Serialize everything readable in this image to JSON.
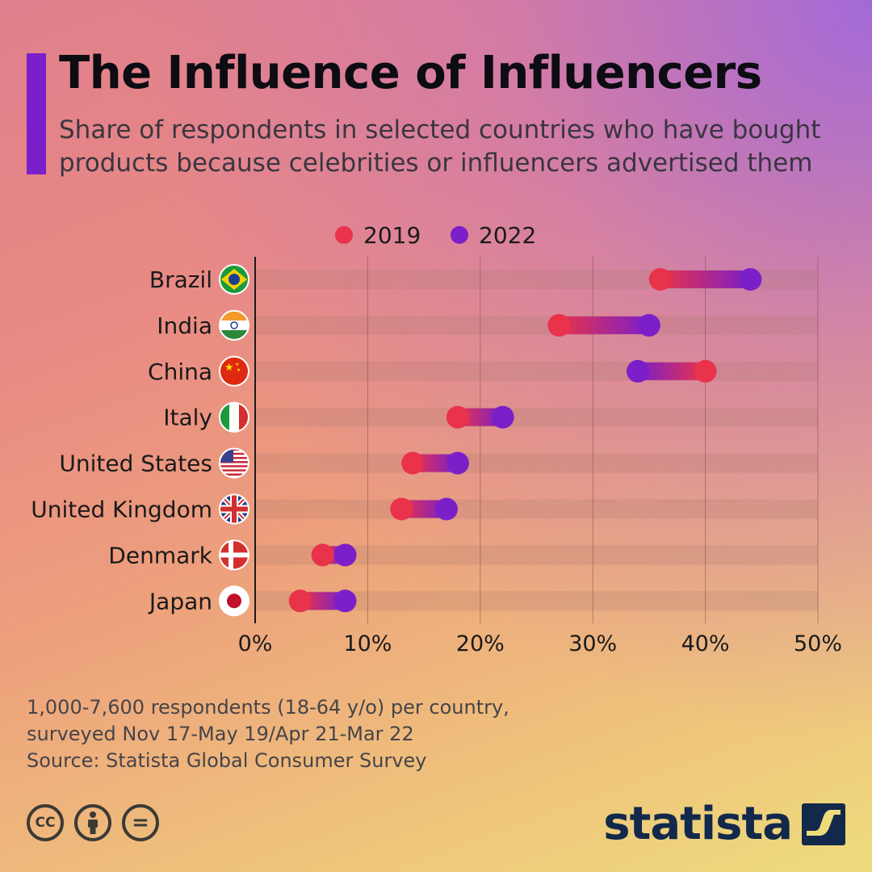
{
  "header": {
    "title": "The Influence of Influencers",
    "subtitle": "Share of respondents in selected countries who have bought products because celebrities or influencers advertised them"
  },
  "chart_data": {
    "type": "dumbbell",
    "xlim": [
      0,
      50
    ],
    "x_ticks": [
      0,
      10,
      20,
      30,
      40,
      50
    ],
    "x_tick_labels": [
      "0%",
      "10%",
      "20%",
      "30%",
      "40%",
      "50%"
    ],
    "categories": [
      "Brazil",
      "India",
      "China",
      "Italy",
      "United States",
      "United Kingdom",
      "Denmark",
      "Japan"
    ],
    "series": [
      {
        "name": "2019",
        "color": "#e8334a",
        "values": [
          36,
          27,
          40,
          18,
          14,
          13,
          6,
          4
        ]
      },
      {
        "name": "2022",
        "color": "#7b1fc9",
        "values": [
          44,
          35,
          34,
          22,
          18,
          17,
          8,
          8
        ]
      }
    ],
    "legend": [
      "2019",
      "2022"
    ],
    "legend_position": "top-center",
    "grid": true
  },
  "flags": [
    "brazil-flag",
    "india-flag",
    "china-flag",
    "italy-flag",
    "united-states-flag",
    "united-kingdom-flag",
    "denmark-flag",
    "japan-flag"
  ],
  "footer": {
    "note": "1,000-7,600 respondents (18-64 y/o) per country, surveyed Nov 17-May 19/Apr 21-Mar 22",
    "source": "Source: Statista Global Consumer Survey"
  },
  "license": {
    "cc": "CC",
    "equals": "="
  },
  "brand": {
    "name": "statista"
  }
}
